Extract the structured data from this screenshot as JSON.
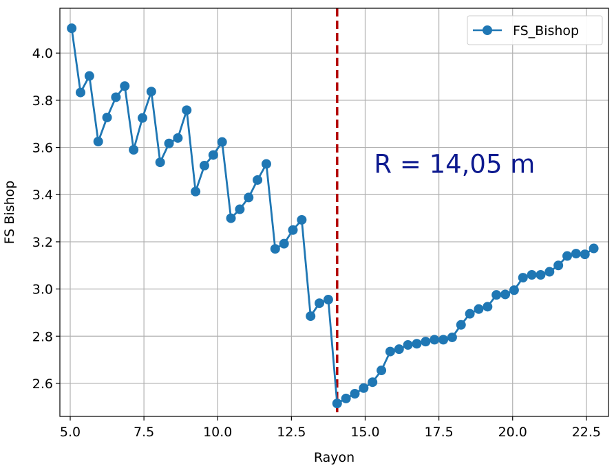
{
  "chart_data": {
    "type": "line",
    "xlabel": "Rayon",
    "ylabel": "FS Bishop",
    "xlim": [
      4.65,
      23.25
    ],
    "ylim": [
      2.46,
      4.19
    ],
    "xticks": [
      5.0,
      7.5,
      10.0,
      12.5,
      15.0,
      17.5,
      20.0,
      22.5
    ],
    "xtick_labels": [
      "5.0",
      "7.5",
      "10.0",
      "12.5",
      "15.0",
      "17.5",
      "20.0",
      "22.5"
    ],
    "yticks": [
      2.6,
      2.8,
      3.0,
      3.2,
      3.4,
      3.6,
      3.8,
      4.0
    ],
    "ytick_labels": [
      "2.6",
      "2.8",
      "3.0",
      "3.2",
      "3.4",
      "3.6",
      "3.8",
      "4.0"
    ],
    "grid": true,
    "legend_position": "top-right",
    "series": [
      {
        "name": "FS_Bishop",
        "color": "#1f77b4",
        "marker": "circle",
        "x": [
          5.05,
          5.35,
          5.65,
          5.95,
          6.25,
          6.55,
          6.85,
          7.15,
          7.45,
          7.75,
          8.05,
          8.35,
          8.65,
          8.95,
          9.25,
          9.55,
          9.85,
          10.15,
          10.45,
          10.75,
          11.05,
          11.35,
          11.65,
          11.95,
          12.25,
          12.55,
          12.85,
          13.15,
          13.45,
          13.75,
          14.05,
          14.35,
          14.65,
          14.95,
          15.25,
          15.55,
          15.85,
          16.15,
          16.45,
          16.75,
          17.05,
          17.35,
          17.65,
          17.95,
          18.25,
          18.55,
          18.85,
          19.15,
          19.45,
          19.75,
          20.05,
          20.35,
          20.65,
          20.95,
          21.25,
          21.55,
          21.85,
          22.15,
          22.45,
          22.75
        ],
        "values": [
          4.105,
          3.833,
          3.903,
          3.625,
          3.727,
          3.813,
          3.86,
          3.59,
          3.725,
          3.837,
          3.537,
          3.617,
          3.64,
          3.758,
          3.413,
          3.523,
          3.568,
          3.623,
          3.3,
          3.338,
          3.388,
          3.462,
          3.53,
          3.17,
          3.192,
          3.25,
          3.293,
          2.885,
          2.94,
          2.955,
          2.515,
          2.536,
          2.556,
          2.58,
          2.605,
          2.655,
          2.735,
          2.745,
          2.763,
          2.768,
          2.777,
          2.785,
          2.785,
          2.795,
          2.848,
          2.895,
          2.915,
          2.925,
          2.975,
          2.977,
          2.995,
          3.048,
          3.06,
          3.06,
          3.073,
          3.1,
          3.14,
          3.15,
          3.147,
          3.172
        ]
      }
    ],
    "vline": {
      "x": 14.05,
      "color": "#b30000",
      "style": "dashed"
    },
    "annotation": {
      "text": "R = 14,05 m",
      "color": "#0d1a8f",
      "x": 15.3,
      "y": 3.53
    }
  }
}
